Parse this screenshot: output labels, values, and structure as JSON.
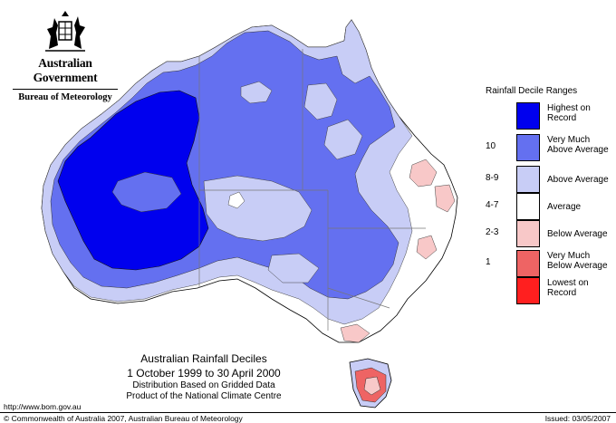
{
  "header": {
    "government": "Australian Government",
    "bureau": "Bureau of Meteorology"
  },
  "legend": {
    "title": "Rainfall Decile Ranges",
    "items": [
      {
        "range": "",
        "line1": "Highest on",
        "line2": "Record",
        "color": "#0000ee"
      },
      {
        "range": "10",
        "line1": "Very Much",
        "line2": "Above Average",
        "color": "#6470f0"
      },
      {
        "range": "8-9",
        "line1": "Above Average",
        "line2": "",
        "color": "#c8cdf6"
      },
      {
        "range": "4-7",
        "line1": "Average",
        "line2": "",
        "color": "#ffffff"
      },
      {
        "range": "2-3",
        "line1": "Below Average",
        "line2": "",
        "color": "#f8c8c8"
      },
      {
        "range": "1",
        "line1": "Very Much",
        "line2": "Below Average",
        "color": "#ee6464"
      },
      {
        "range": "",
        "line1": "Lowest on",
        "line2": "Record",
        "color": "#ff1f1f"
      }
    ]
  },
  "caption": {
    "title": "Australian Rainfall Deciles",
    "dates": "1 October 1999 to 30 April 2000",
    "line1": "Distribution Based on Gridded Data",
    "line2": "Product of the National Climate Centre"
  },
  "footer": {
    "url": "http://www.bom.gov.au",
    "copyright": "© Commonwealth of Australia 2007, Australian Bureau of Meteorology",
    "issued": "Issued: 03/05/2007"
  }
}
